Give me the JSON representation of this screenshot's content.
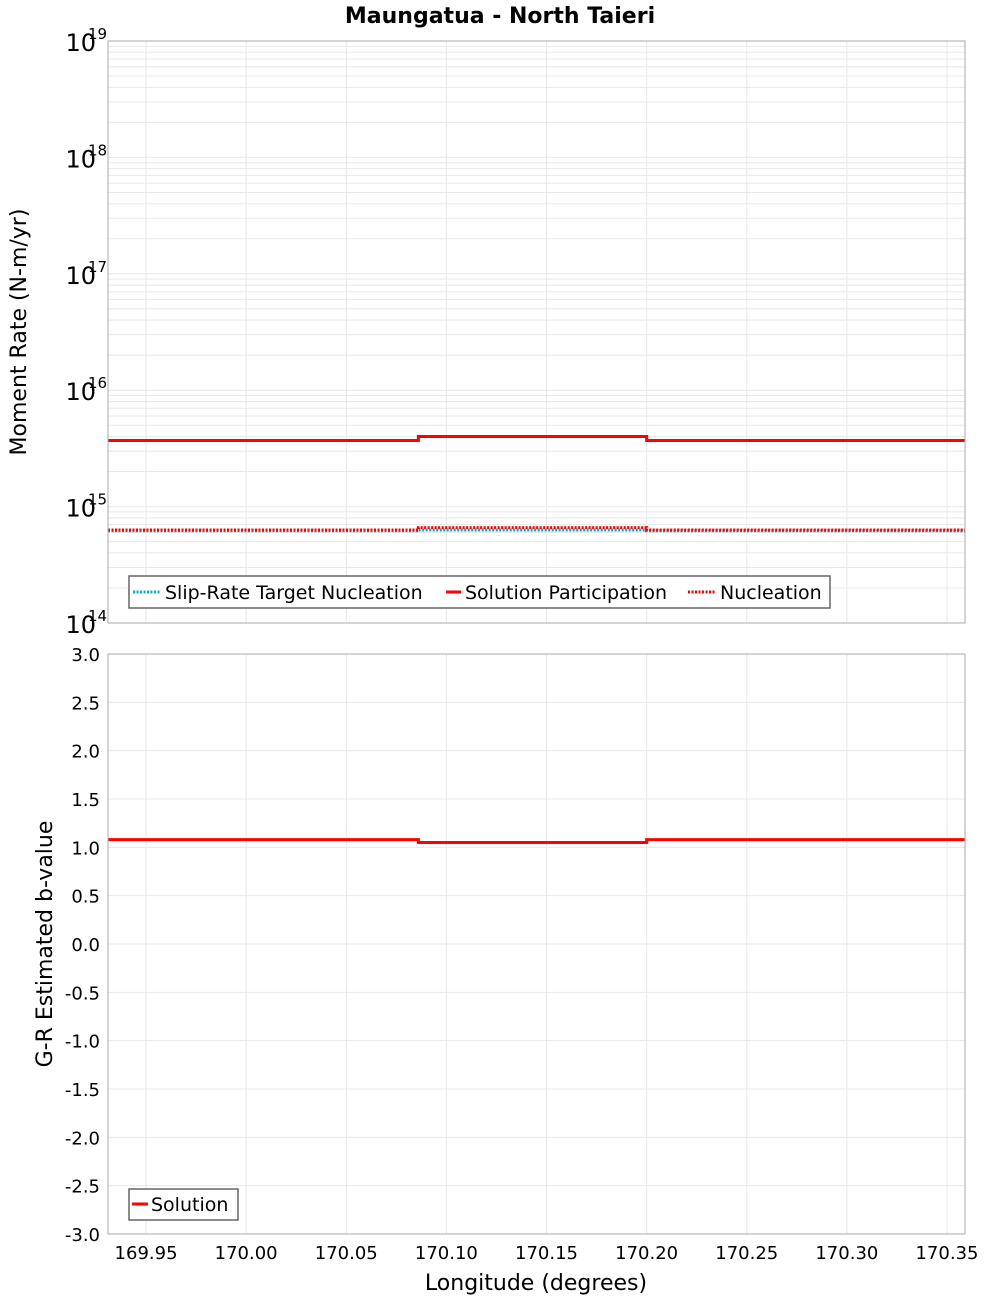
{
  "title": "Maungatua - North Taieri",
  "colors": {
    "solution": "#ff0000",
    "target": "#00b0c0",
    "grid": "#e8e8e8",
    "frame": "#aaaaaa"
  },
  "chart_data": [
    {
      "type": "line",
      "title": "Maungatua - North Taieri",
      "xlabel": "Longitude (degrees)",
      "ylabel": "Moment Rate (N-m/yr)",
      "yscale": "log",
      "ylim": [
        100000000000000.0,
        1e+19
      ],
      "xlim": [
        169.931,
        170.359
      ],
      "grid": true,
      "legend_position": "lower-left",
      "y_tick_labels": [
        {
          "base": "10",
          "exp": "19"
        },
        {
          "base": "10",
          "exp": "18"
        },
        {
          "base": "10",
          "exp": "17"
        },
        {
          "base": "10",
          "exp": "16"
        },
        {
          "base": "10",
          "exp": "15"
        },
        {
          "base": "10",
          "exp": "14"
        }
      ],
      "series": [
        {
          "name": "Slip-Rate Target Nucleation",
          "style": "dotted",
          "color": "#00b0c0",
          "x": [
            169.931,
            170.086,
            170.086,
            170.2,
            170.2,
            170.359
          ],
          "y": [
            620000000000000.0,
            620000000000000.0,
            630000000000000.0,
            630000000000000.0,
            620000000000000.0,
            620000000000000.0
          ]
        },
        {
          "name": "Solution Participation",
          "style": "solid",
          "color": "#ff0000",
          "x": [
            169.931,
            170.086,
            170.086,
            170.2,
            170.2,
            170.359
          ],
          "y": [
            3700000000000000.0,
            3700000000000000.0,
            4000000000000000.0,
            4000000000000000.0,
            3700000000000000.0,
            3700000000000000.0
          ]
        },
        {
          "name": "Nucleation",
          "style": "dotted",
          "color": "#ff0000",
          "x": [
            169.931,
            170.086,
            170.086,
            170.2,
            170.2,
            170.359
          ],
          "y": [
            630000000000000.0,
            630000000000000.0,
            660000000000000.0,
            660000000000000.0,
            630000000000000.0,
            630000000000000.0
          ]
        }
      ]
    },
    {
      "type": "line",
      "xlabel": "Longitude (degrees)",
      "ylabel": "G-R Estimated b-value",
      "ylim": [
        -3.0,
        3.0
      ],
      "xlim": [
        169.931,
        170.359
      ],
      "grid": true,
      "legend_position": "lower-left",
      "y_tick_labels": [
        "3.0",
        "2.5",
        "2.0",
        "1.5",
        "1.0",
        "0.5",
        "0.0",
        "-0.5",
        "-1.0",
        "-1.5",
        "-2.0",
        "-2.5",
        "-3.0"
      ],
      "x_tick_labels": [
        "169.95",
        "170.00",
        "170.05",
        "170.10",
        "170.15",
        "170.20",
        "170.25",
        "170.30",
        "170.35"
      ],
      "series": [
        {
          "name": "Solution",
          "style": "solid",
          "color": "#ff0000",
          "x": [
            169.931,
            170.086,
            170.086,
            170.2,
            170.2,
            170.359
          ],
          "y": [
            1.08,
            1.08,
            1.05,
            1.05,
            1.08,
            1.08
          ]
        }
      ]
    }
  ]
}
